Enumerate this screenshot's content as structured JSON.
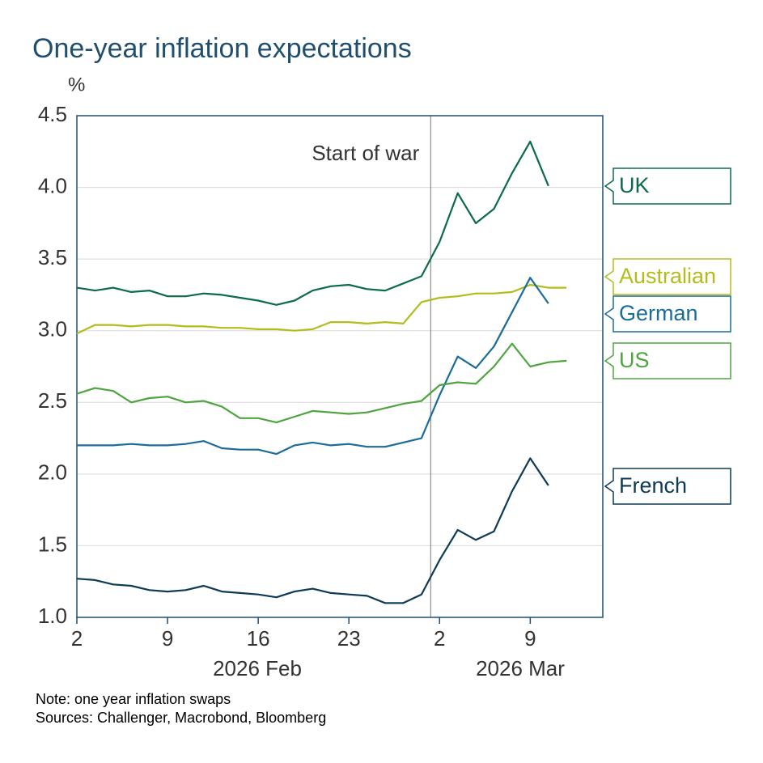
{
  "chart_data": {
    "type": "line",
    "title": "One-year inflation expectations",
    "y_unit": "%",
    "note": "Note: one year inflation swaps",
    "sources": "Sources: Challenger, Macrobond, Bloomberg",
    "annotation": {
      "text": "Start of war",
      "x": "2026-03-02"
    },
    "month_labels": [
      "2026 Feb",
      "2026 Mar"
    ],
    "x": [
      "2026-02-02",
      "2026-02-03",
      "2026-02-04",
      "2026-02-05",
      "2026-02-06",
      "2026-02-09",
      "2026-02-10",
      "2026-02-11",
      "2026-02-12",
      "2026-02-13",
      "2026-02-16",
      "2026-02-17",
      "2026-02-18",
      "2026-02-19",
      "2026-02-20",
      "2026-02-23",
      "2026-02-24",
      "2026-02-25",
      "2026-02-26",
      "2026-02-27",
      "2026-03-02",
      "2026-03-03",
      "2026-03-04",
      "2026-03-05",
      "2026-03-06",
      "2026-03-09",
      "2026-03-10",
      "2026-03-11"
    ],
    "xlim": [
      "2026-02-02",
      "2026-03-13"
    ],
    "xticks": [
      {
        "value": "2026-02-02",
        "label": "2"
      },
      {
        "value": "2026-02-09",
        "label": "9"
      },
      {
        "value": "2026-02-16",
        "label": "16"
      },
      {
        "value": "2026-02-23",
        "label": "23"
      },
      {
        "value": "2026-03-02",
        "label": "2"
      },
      {
        "value": "2026-03-09",
        "label": "9"
      }
    ],
    "ylim": [
      1.0,
      4.5
    ],
    "yticks": [
      {
        "value": 1.0,
        "label": "1.0"
      },
      {
        "value": 1.5,
        "label": "1.5"
      },
      {
        "value": 2.0,
        "label": "2.0"
      },
      {
        "value": 2.5,
        "label": "2.5"
      },
      {
        "value": 3.0,
        "label": "3.0"
      },
      {
        "value": 3.5,
        "label": "3.5"
      },
      {
        "value": 4.0,
        "label": "4.0"
      },
      {
        "value": 4.5,
        "label": "4.5"
      }
    ],
    "grid": true,
    "series": [
      {
        "name": "UK",
        "color": "#0b6b4a",
        "values": [
          3.3,
          3.28,
          3.3,
          3.27,
          3.28,
          3.24,
          3.24,
          3.26,
          3.25,
          3.23,
          3.21,
          3.18,
          3.21,
          3.28,
          3.31,
          3.32,
          3.29,
          3.28,
          3.33,
          3.38,
          3.62,
          3.96,
          3.75,
          3.85,
          4.1,
          4.32,
          4.01,
          null
        ]
      },
      {
        "name": "Australian",
        "color": "#b3bc1b",
        "values": [
          2.98,
          3.04,
          3.04,
          3.03,
          3.04,
          3.04,
          3.03,
          3.03,
          3.02,
          3.02,
          3.01,
          3.01,
          3.0,
          3.01,
          3.06,
          3.06,
          3.05,
          3.06,
          3.05,
          3.2,
          3.23,
          3.24,
          3.26,
          3.26,
          3.27,
          3.32,
          3.3,
          3.3
        ]
      },
      {
        "name": "German",
        "color": "#1a6c9a",
        "values": [
          2.2,
          2.2,
          2.2,
          2.21,
          2.2,
          2.2,
          2.21,
          2.23,
          2.18,
          2.17,
          2.17,
          2.14,
          2.2,
          2.22,
          2.2,
          2.21,
          2.19,
          2.19,
          2.22,
          2.25,
          2.55,
          2.82,
          2.74,
          2.89,
          3.13,
          3.37,
          3.19,
          null
        ]
      },
      {
        "name": "US",
        "color": "#4ea540",
        "values": [
          2.56,
          2.6,
          2.58,
          2.5,
          2.53,
          2.54,
          2.5,
          2.51,
          2.47,
          2.39,
          2.39,
          2.36,
          2.4,
          2.44,
          2.43,
          2.42,
          2.43,
          2.46,
          2.49,
          2.51,
          2.62,
          2.64,
          2.63,
          2.75,
          2.91,
          2.75,
          2.78,
          2.79
        ]
      },
      {
        "name": "French",
        "color": "#0d3a56",
        "values": [
          1.27,
          1.26,
          1.23,
          1.22,
          1.19,
          1.18,
          1.19,
          1.22,
          1.18,
          1.17,
          1.16,
          1.14,
          1.18,
          1.2,
          1.17,
          1.16,
          1.15,
          1.1,
          1.1,
          1.16,
          1.4,
          1.61,
          1.54,
          1.6,
          1.88,
          2.11,
          1.92,
          null
        ]
      }
    ]
  }
}
